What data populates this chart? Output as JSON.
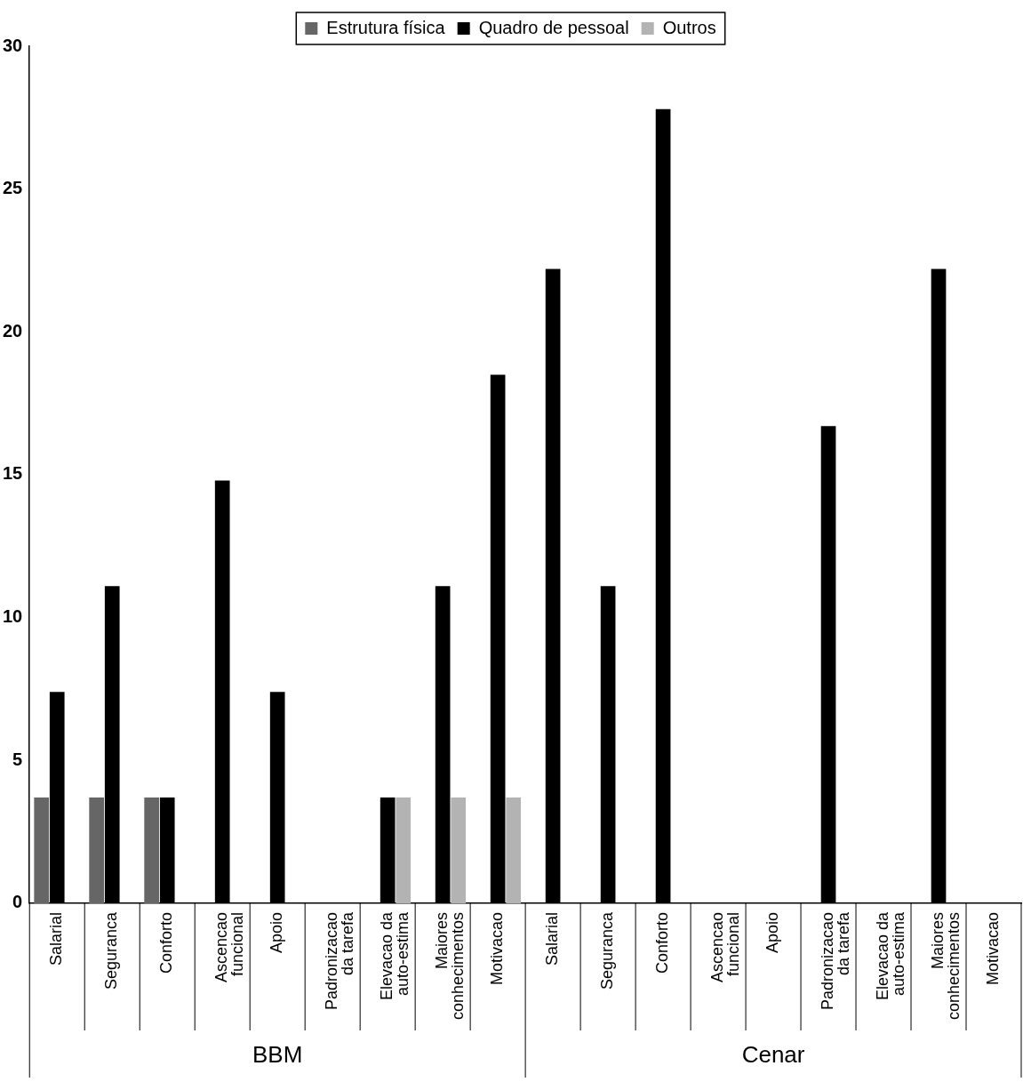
{
  "chart_data": {
    "type": "bar",
    "categories": [
      "Salarial",
      "Seguranca",
      "Conforto",
      "Ascencao\nfuncional",
      "Apoio",
      "Padronizacao\nda tarefa",
      "Elevacao da\nauto-estima",
      "Maiores\nconhecimentos",
      "Motivacao",
      "Salarial",
      "Seguranca",
      "Conforto",
      "Ascencao\nfuncional",
      "Apoio",
      "Padronizacao\nda tarefa",
      "Elevacao da\nauto-estima",
      "Maiores\nconhecimentos",
      "Motivacao"
    ],
    "series": [
      {
        "name": "Estrutura física",
        "color": "#666666",
        "values": [
          3.7,
          3.7,
          3.7,
          null,
          null,
          null,
          null,
          null,
          null,
          null,
          null,
          null,
          null,
          null,
          null,
          null,
          null,
          null
        ]
      },
      {
        "name": "Quadro de pessoal",
        "color": "#000000",
        "values": [
          7.4,
          11.1,
          3.7,
          14.8,
          7.4,
          null,
          3.7,
          11.1,
          18.5,
          22.2,
          11.1,
          27.8,
          null,
          null,
          16.7,
          null,
          22.2,
          null
        ]
      },
      {
        "name": "Outros",
        "color": "#b3b3b3",
        "values": [
          null,
          null,
          null,
          null,
          null,
          null,
          3.7,
          3.7,
          3.7,
          null,
          null,
          null,
          null,
          null,
          null,
          null,
          null,
          null
        ]
      }
    ],
    "annotations": [
      "BBM",
      "Cenar"
    ],
    "ylim": [
      0,
      30
    ],
    "yticks": [
      0,
      5,
      10,
      15,
      20,
      25,
      30
    ],
    "grid": false,
    "legend": "top"
  }
}
